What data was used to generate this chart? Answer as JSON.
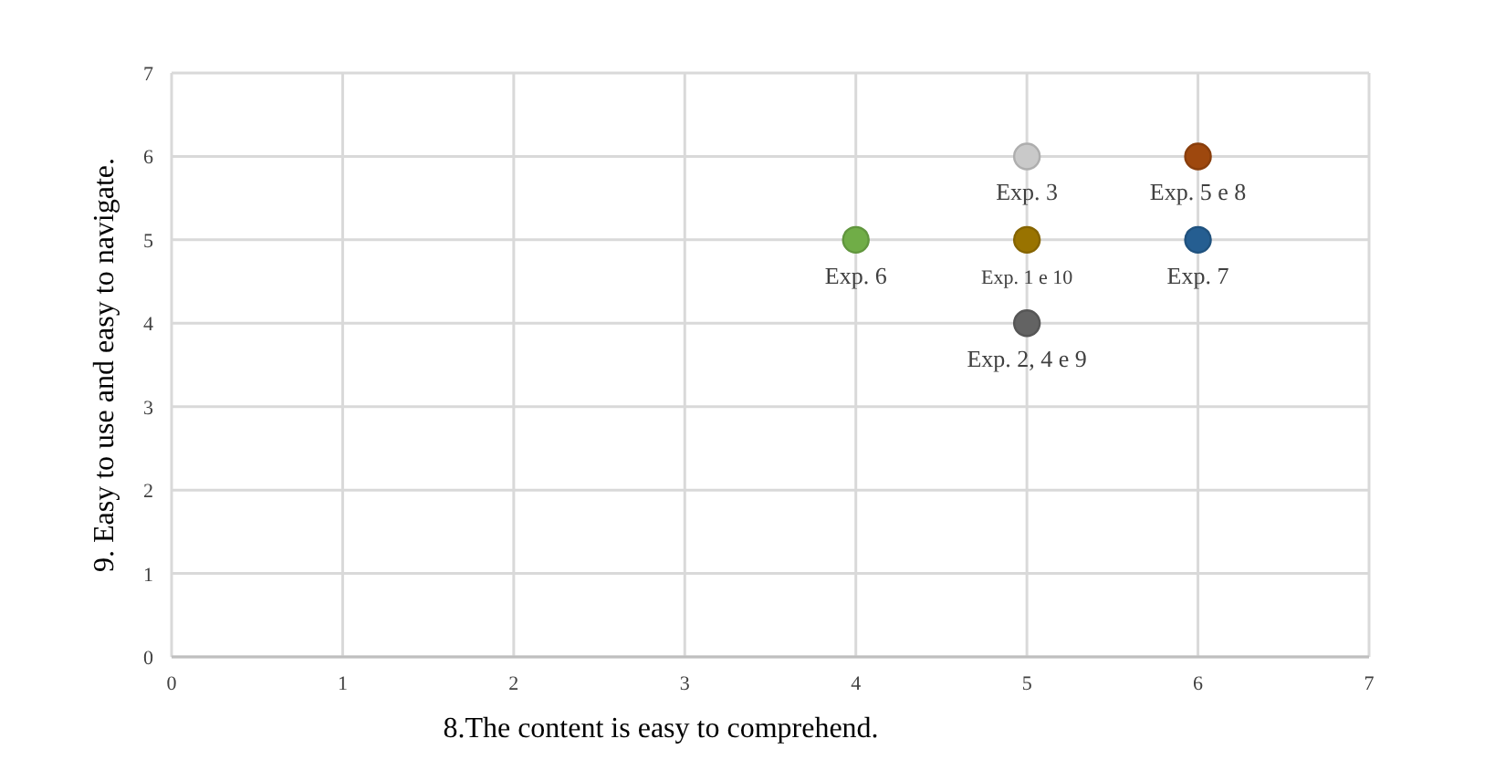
{
  "chart_data": {
    "type": "scatter",
    "xlabel": "8.The content is easy to comprehend.",
    "ylabel": "9. Easy to use and easy to navigate.",
    "xlim": [
      0,
      7
    ],
    "ylim": [
      0,
      7
    ],
    "xticks": [
      0,
      1,
      2,
      3,
      4,
      5,
      6,
      7
    ],
    "yticks": [
      0,
      1,
      2,
      3,
      4,
      5,
      6,
      7
    ],
    "grid": true,
    "marker": "circle",
    "series": [
      {
        "name": "Exp. 1 e 10",
        "color": "#997300",
        "x": [
          5
        ],
        "values": [
          5
        ]
      },
      {
        "name": "Exp.  2, 4 e 9",
        "color": "#636363",
        "x": [
          5
        ],
        "values": [
          4
        ]
      },
      {
        "name": "Exp. 3",
        "color": "#c9c9c9",
        "x": [
          5
        ],
        "values": [
          6
        ]
      },
      {
        "name": "Exp. 5 e 8",
        "color": "#9e480e",
        "x": [
          6
        ],
        "values": [
          6
        ]
      },
      {
        "name": "Exp. 6",
        "color": "#70ad47",
        "x": [
          4
        ],
        "values": [
          5
        ]
      },
      {
        "name": "Exp. 7",
        "color": "#255e91",
        "x": [
          6
        ],
        "values": [
          5
        ]
      }
    ]
  }
}
